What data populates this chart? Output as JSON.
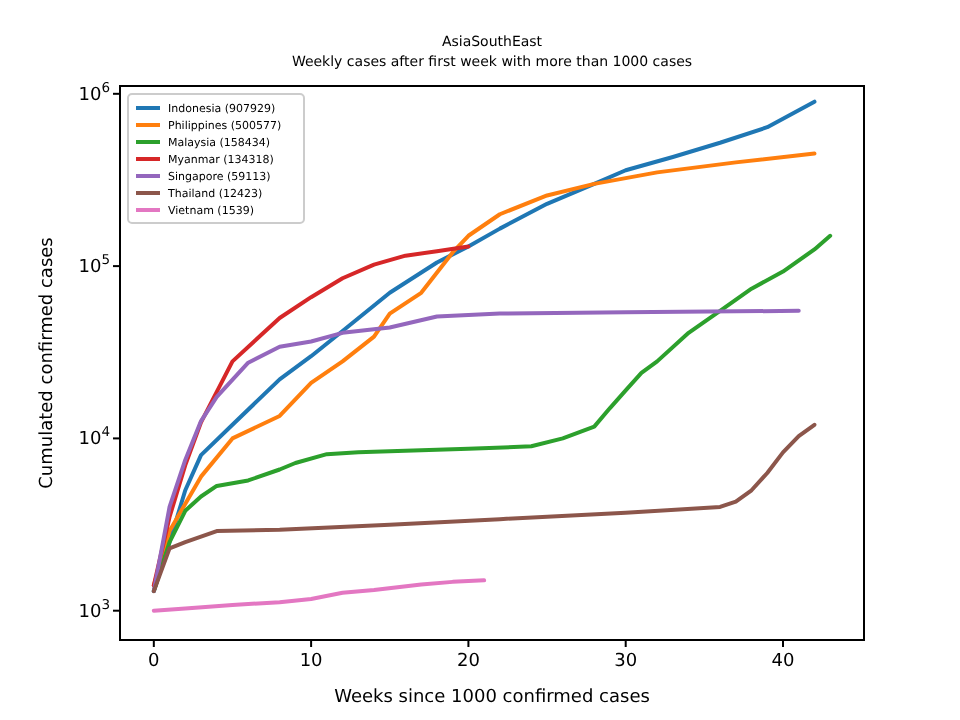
{
  "chart_data": {
    "type": "line",
    "title": "AsiaSouthEast",
    "subtitle": "Weekly cases after first week with more than 1000 cases",
    "xlabel": "Weeks since 1000 confirmed cases",
    "ylabel": "Cumulated confirmed cases",
    "log": "y",
    "xlim": [
      -2.15,
      45.15
    ],
    "xticks": [
      0,
      10,
      20,
      30,
      40
    ],
    "ylim": [
      676,
      1110000
    ],
    "yticks": [
      {
        "value": 1000,
        "label": "10$^{3}$"
      },
      {
        "value": 10000,
        "label": "10$^{4}$"
      },
      {
        "value": 100000,
        "label": "10$^{5}$"
      },
      {
        "value": 1000000,
        "label": "10$^{6}$"
      }
    ],
    "legend": "top left",
    "grid": false,
    "marker": "none",
    "line_style": "solid",
    "series": [
      {
        "name": "Indonesia (907929)",
        "color": "#1f77b4",
        "x": [
          0,
          1,
          2,
          3,
          5,
          8,
          10,
          12,
          15,
          18,
          20,
          22,
          25,
          28,
          30,
          33,
          36,
          39,
          42
        ],
        "values": [
          1300,
          2500,
          5000,
          8000,
          12000,
          22000,
          30000,
          42000,
          70000,
          105000,
          130000,
          165000,
          230000,
          300000,
          360000,
          430000,
          520000,
          640000,
          900000
        ]
      },
      {
        "name": "Philippines (500577)",
        "color": "#ff7f0e",
        "x": [
          0,
          1,
          3,
          5,
          8,
          10,
          12,
          14,
          15,
          17,
          19,
          20,
          22,
          25,
          28,
          32,
          37,
          42
        ],
        "values": [
          1400,
          2900,
          6000,
          10000,
          13500,
          21000,
          28000,
          39000,
          53000,
          70000,
          120000,
          150000,
          200000,
          257000,
          300000,
          350000,
          400000,
          450000
        ]
      },
      {
        "name": "Malaysia (158434)",
        "color": "#2ca02c",
        "x": [
          0,
          1,
          2,
          3,
          4,
          6,
          8,
          9,
          11,
          13,
          20,
          24,
          26,
          28,
          29,
          30,
          31,
          32,
          34,
          36,
          38,
          40,
          42,
          43
        ],
        "values": [
          1300,
          2500,
          3800,
          4600,
          5300,
          5700,
          6600,
          7200,
          8100,
          8300,
          8700,
          9000,
          10000,
          11700,
          15000,
          19000,
          24000,
          28000,
          41000,
          55000,
          74000,
          93000,
          125000,
          150000
        ]
      },
      {
        "name": "Myanmar (134318)",
        "color": "#d62728",
        "x": [
          0,
          1,
          2,
          3,
          5,
          8,
          10,
          12,
          14,
          16,
          18,
          20
        ],
        "values": [
          1400,
          3500,
          7000,
          12400,
          28000,
          50000,
          66000,
          85000,
          102000,
          115000,
          122000,
          130000
        ]
      },
      {
        "name": "Singapore (59113)",
        "color": "#9467bd",
        "x": [
          0,
          1,
          2,
          3,
          4,
          6,
          8,
          10,
          12,
          15,
          18,
          22,
          30,
          41
        ],
        "values": [
          1300,
          4000,
          7500,
          12600,
          17400,
          27500,
          34000,
          36500,
          41000,
          44000,
          51000,
          53000,
          54000,
          55000
        ]
      },
      {
        "name": "Thailand (12423)",
        "color": "#8c564b",
        "x": [
          0,
          1,
          2,
          4,
          8,
          15,
          22,
          30,
          36,
          37,
          38,
          39,
          40,
          41,
          42
        ],
        "values": [
          1300,
          2300,
          2500,
          2900,
          2950,
          3150,
          3400,
          3700,
          4000,
          4300,
          5000,
          6300,
          8300,
          10300,
          12000
        ]
      },
      {
        "name": "Vietnam (1539)",
        "color": "#e377c2",
        "x": [
          0,
          2,
          5,
          8,
          10,
          12,
          14,
          17,
          19,
          21
        ],
        "values": [
          1000,
          1030,
          1080,
          1120,
          1170,
          1270,
          1320,
          1420,
          1470,
          1500
        ]
      }
    ]
  }
}
